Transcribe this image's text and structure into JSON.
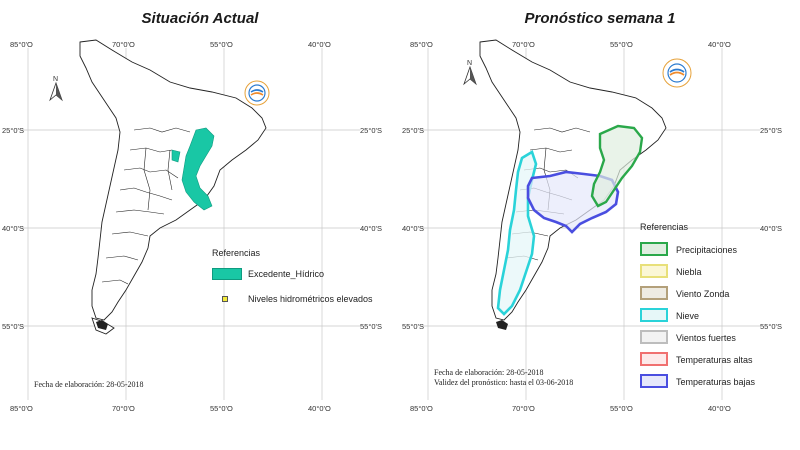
{
  "left": {
    "title": "Situación Actual",
    "legend": {
      "title": "Referencias",
      "items": [
        {
          "label": "Excedente_Hídrico",
          "fill": "#19c7a5",
          "stroke": "#0f9b80"
        },
        {
          "label": "Niveles hidrométricos elevados",
          "fill": "#f3ea3a",
          "stroke": "#555555"
        }
      ]
    },
    "fecha": "Fecha de elaboración: 28-05-2018"
  },
  "right": {
    "title": "Pronóstico semana 1",
    "legend": {
      "title": "Referencias",
      "items": [
        {
          "label": "Precipitaciones",
          "fill": "#dfeee0",
          "stroke": "#2aa84a"
        },
        {
          "label": "Niebla",
          "fill": "#fbf7d6",
          "stroke": "#e8e07a"
        },
        {
          "label": "Viento Zonda",
          "fill": "#eeebe2",
          "stroke": "#b3a07a"
        },
        {
          "label": "Nieve",
          "fill": "#e6f7f8",
          "stroke": "#2ad3d9"
        },
        {
          "label": "Vientos fuertes",
          "fill": "#f2f2f2",
          "stroke": "#bdbdbd"
        },
        {
          "label": "Temperaturas altas",
          "fill": "#fdeaea",
          "stroke": "#f07070"
        },
        {
          "label": "Temperaturas bajas",
          "fill": "#e6e8fb",
          "stroke": "#4a4ee0"
        }
      ]
    },
    "fecha": "Fecha de elaboración: 28-05-2018",
    "validez": "Validez del pronóstico: hasta el 03-06-2018"
  },
  "graticule": {
    "lon_top": [
      "85°0'O",
      "70°0'O",
      "55°0'O",
      "40°0'O"
    ],
    "lon_bottom": [
      "85°0'O",
      "70°0'O",
      "55°0'O",
      "40°0'O"
    ],
    "lat_left": [
      "25°0'S",
      "40°0'S",
      "55°0'S"
    ],
    "lat_right": [
      "25°0'S",
      "40°0'S",
      "55°0'S"
    ]
  },
  "north_letter": "N",
  "map_colors": {
    "outline": "#222222",
    "graticule": "#c8c8c8"
  },
  "icons": {
    "north": "north-arrow-icon",
    "logo": "institution-logo-icon"
  }
}
